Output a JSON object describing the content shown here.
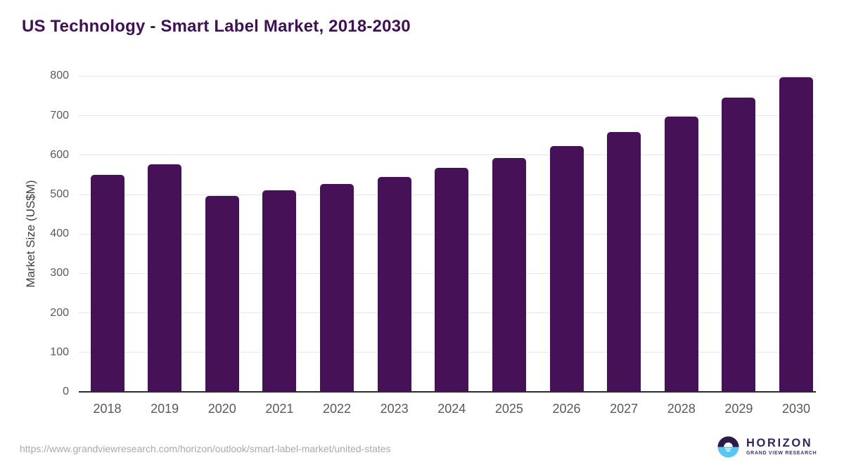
{
  "title": "US Technology - Smart Label Market, 2018-2030",
  "chart_data": {
    "type": "bar",
    "categories": [
      "2018",
      "2019",
      "2020",
      "2021",
      "2022",
      "2023",
      "2024",
      "2025",
      "2026",
      "2027",
      "2028",
      "2029",
      "2030"
    ],
    "values": [
      550,
      576,
      497,
      511,
      526,
      545,
      568,
      592,
      623,
      659,
      698,
      745,
      798
    ],
    "title": "US Technology - Smart Label Market, 2018-2030",
    "xlabel": "",
    "ylabel": "Market Size (US$M)",
    "ylim": [
      0,
      800
    ],
    "ytick_step": 100,
    "grid": true,
    "legend": false,
    "bar_color": "#471158"
  },
  "footer": {
    "source_url": "https://www.grandviewresearch.com/horizon/outlook/smart-label-market/united-states",
    "logo": {
      "name": "HORIZON",
      "subtitle": "GRAND VIEW RESEARCH",
      "icon": "horizon-sun-icon",
      "colors": {
        "circle_top": "#2d1a45",
        "circle_bottom": "#59c7f2",
        "sun": "#ffffff"
      }
    }
  },
  "colors": {
    "title_text": "#3d1152",
    "bar": "#471158",
    "gridline": "#e8e8e8",
    "axis_line": "#2b2b2b",
    "tick_text": "#595959",
    "background": "#ffffff"
  }
}
